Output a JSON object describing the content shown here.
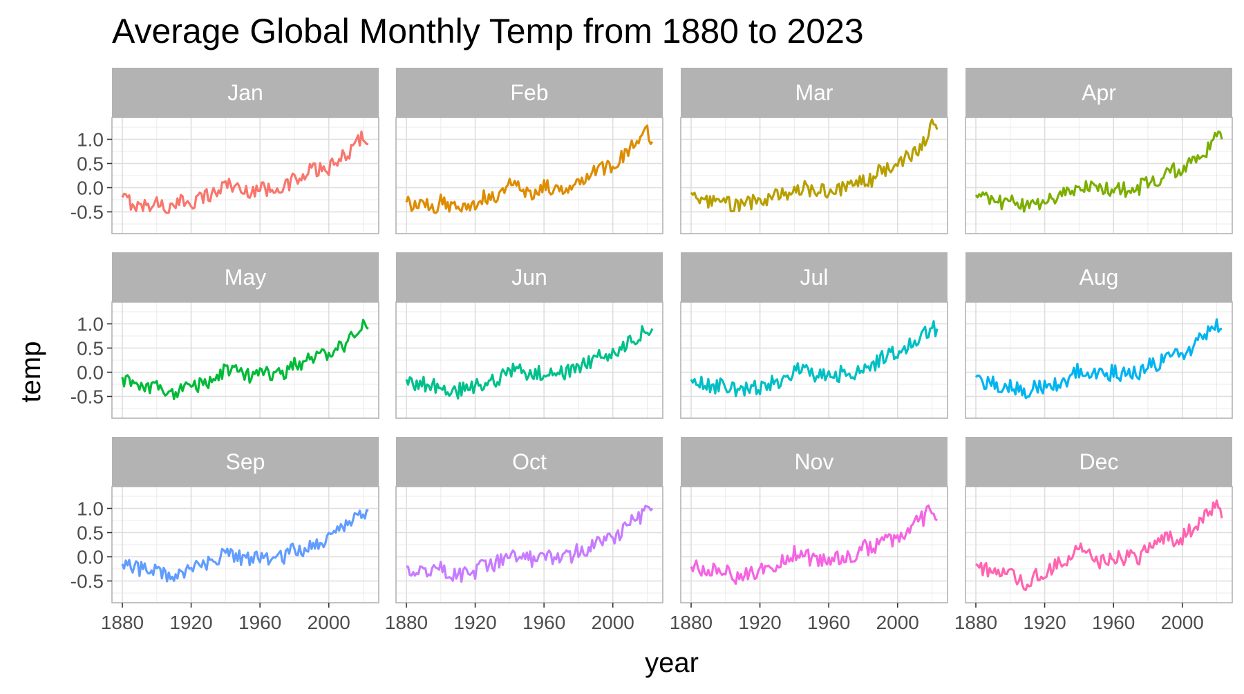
{
  "chart_data": {
    "type": "line",
    "title": "Average Global Monthly Temp from 1880 to 2023",
    "xlabel": "year",
    "ylabel": "temp",
    "xlim": [
      1880,
      2023
    ],
    "ylim": [
      -0.95,
      1.45
    ],
    "x_ticks": [
      1880,
      1920,
      1960,
      2000
    ],
    "x_tick_labels": [
      "1880",
      "1920",
      "1960",
      "2000"
    ],
    "y_ticks": [
      -0.5,
      0.0,
      0.5,
      1.0
    ],
    "y_tick_labels": [
      "-0.5",
      "0.0",
      "0.5",
      "1.0"
    ],
    "grid": true,
    "legend": "none",
    "facet_layout": "4 columns x 3 rows",
    "x": [
      1880,
      1885,
      1890,
      1895,
      1900,
      1905,
      1910,
      1915,
      1920,
      1925,
      1930,
      1935,
      1940,
      1945,
      1950,
      1955,
      1960,
      1965,
      1970,
      1975,
      1980,
      1985,
      1990,
      1995,
      2000,
      2005,
      2010,
      2015,
      2020,
      2023
    ],
    "series": [
      {
        "name": "Jan",
        "color": "#F8766D",
        "values": [
          -0.2,
          -0.3,
          -0.4,
          -0.35,
          -0.3,
          -0.4,
          -0.45,
          -0.25,
          -0.3,
          -0.2,
          -0.15,
          -0.1,
          0.1,
          0.05,
          -0.1,
          -0.05,
          0.0,
          -0.05,
          0.05,
          0.0,
          0.2,
          0.15,
          0.4,
          0.35,
          0.4,
          0.5,
          0.7,
          0.85,
          1.1,
          0.9
        ]
      },
      {
        "name": "Feb",
        "color": "#DE8C00",
        "values": [
          -0.3,
          -0.4,
          -0.35,
          -0.45,
          -0.3,
          -0.4,
          -0.4,
          -0.3,
          -0.35,
          -0.2,
          -0.2,
          -0.1,
          0.1,
          0.0,
          -0.1,
          -0.1,
          0.05,
          -0.05,
          0.0,
          0.05,
          0.2,
          0.25,
          0.35,
          0.4,
          0.45,
          0.6,
          0.8,
          0.9,
          1.2,
          0.95
        ]
      },
      {
        "name": "Mar",
        "color": "#B79F00",
        "values": [
          -0.1,
          -0.25,
          -0.3,
          -0.35,
          -0.3,
          -0.35,
          -0.4,
          -0.3,
          -0.3,
          -0.2,
          -0.15,
          -0.15,
          0.0,
          0.0,
          -0.1,
          -0.05,
          -0.05,
          -0.05,
          0.0,
          0.0,
          0.2,
          0.15,
          0.4,
          0.35,
          0.45,
          0.6,
          0.75,
          0.9,
          1.25,
          1.2
        ]
      },
      {
        "name": "Apr",
        "color": "#7CAE00",
        "values": [
          -0.15,
          -0.25,
          -0.3,
          -0.3,
          -0.25,
          -0.35,
          -0.4,
          -0.3,
          -0.3,
          -0.2,
          -0.15,
          -0.1,
          0.05,
          0.05,
          -0.05,
          -0.05,
          0.0,
          -0.05,
          0.0,
          0.0,
          0.15,
          0.15,
          0.3,
          0.35,
          0.4,
          0.5,
          0.65,
          0.8,
          1.05,
          1.0
        ]
      },
      {
        "name": "May",
        "color": "#00BA38",
        "values": [
          -0.1,
          -0.3,
          -0.3,
          -0.35,
          -0.25,
          -0.4,
          -0.45,
          -0.3,
          -0.3,
          -0.25,
          -0.2,
          -0.15,
          0.05,
          0.05,
          -0.1,
          -0.05,
          0.0,
          -0.05,
          0.0,
          0.0,
          0.15,
          0.15,
          0.3,
          0.3,
          0.4,
          0.5,
          0.6,
          0.75,
          0.95,
          0.9
        ]
      },
      {
        "name": "Jun",
        "color": "#00C08B",
        "values": [
          -0.15,
          -0.25,
          -0.25,
          -0.3,
          -0.25,
          -0.35,
          -0.4,
          -0.3,
          -0.3,
          -0.25,
          -0.2,
          -0.1,
          0.05,
          0.05,
          -0.05,
          -0.05,
          0.0,
          -0.05,
          0.0,
          0.0,
          0.15,
          0.15,
          0.3,
          0.35,
          0.4,
          0.5,
          0.65,
          0.75,
          0.9,
          0.9
        ]
      },
      {
        "name": "Jul",
        "color": "#00BFC4",
        "values": [
          -0.15,
          -0.2,
          -0.25,
          -0.3,
          -0.25,
          -0.35,
          -0.4,
          -0.3,
          -0.3,
          -0.25,
          -0.2,
          -0.1,
          0.05,
          0.05,
          -0.05,
          -0.05,
          0.0,
          -0.05,
          0.0,
          0.0,
          0.15,
          0.1,
          0.3,
          0.35,
          0.4,
          0.5,
          0.6,
          0.75,
          0.9,
          0.9
        ]
      },
      {
        "name": "Aug",
        "color": "#00B4F0",
        "values": [
          -0.1,
          -0.25,
          -0.25,
          -0.3,
          -0.25,
          -0.35,
          -0.4,
          -0.3,
          -0.3,
          -0.25,
          -0.2,
          -0.1,
          0.05,
          0.05,
          -0.05,
          -0.05,
          0.0,
          -0.05,
          0.0,
          0.0,
          0.15,
          0.15,
          0.3,
          0.35,
          0.4,
          0.5,
          0.65,
          0.8,
          0.95,
          0.9
        ]
      },
      {
        "name": "Sep",
        "color": "#619CFF",
        "values": [
          -0.15,
          -0.2,
          -0.25,
          -0.25,
          -0.25,
          -0.35,
          -0.45,
          -0.3,
          -0.3,
          -0.2,
          -0.15,
          -0.1,
          0.1,
          0.05,
          -0.05,
          -0.05,
          0.0,
          -0.05,
          0.0,
          0.0,
          0.15,
          0.15,
          0.3,
          0.3,
          0.4,
          0.5,
          0.65,
          0.75,
          0.95,
          0.95
        ]
      },
      {
        "name": "Oct",
        "color": "#C77CFF",
        "values": [
          -0.2,
          -0.25,
          -0.25,
          -0.3,
          -0.25,
          -0.35,
          -0.4,
          -0.3,
          -0.3,
          -0.2,
          -0.15,
          -0.1,
          0.1,
          0.05,
          -0.05,
          -0.05,
          0.0,
          -0.05,
          0.0,
          0.0,
          0.15,
          0.15,
          0.3,
          0.35,
          0.4,
          0.5,
          0.7,
          0.8,
          1.0,
          1.0
        ]
      },
      {
        "name": "Nov",
        "color": "#F564E3",
        "values": [
          -0.2,
          -0.25,
          -0.3,
          -0.3,
          -0.25,
          -0.4,
          -0.45,
          -0.3,
          -0.3,
          -0.2,
          -0.15,
          -0.1,
          0.1,
          0.05,
          -0.05,
          -0.05,
          0.0,
          -0.05,
          0.0,
          0.0,
          0.2,
          0.15,
          0.35,
          0.35,
          0.4,
          0.55,
          0.7,
          0.8,
          1.0,
          0.75
        ]
      },
      {
        "name": "Dec",
        "color": "#FF64B0",
        "values": [
          -0.15,
          -0.25,
          -0.3,
          -0.35,
          -0.3,
          -0.45,
          -0.6,
          -0.35,
          -0.35,
          -0.2,
          -0.15,
          -0.1,
          0.2,
          0.05,
          -0.1,
          -0.05,
          0.0,
          -0.05,
          0.05,
          0.0,
          0.25,
          0.2,
          0.4,
          0.35,
          0.4,
          0.55,
          0.75,
          0.85,
          1.1,
          0.8
        ]
      }
    ]
  }
}
